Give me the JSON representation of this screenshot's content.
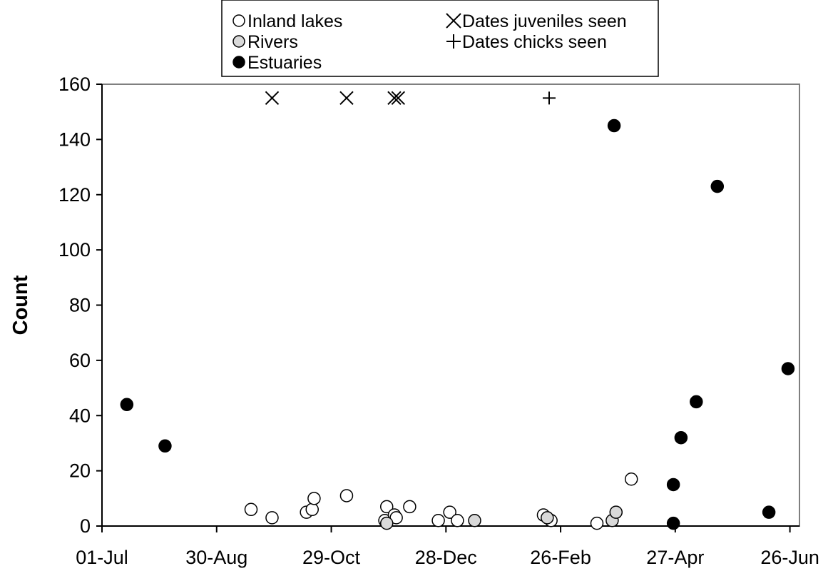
{
  "chart_data": {
    "type": "scatter",
    "ylabel": "Count",
    "ylim": [
      0,
      160
    ],
    "yticks": [
      0,
      20,
      40,
      60,
      80,
      100,
      120,
      140,
      160
    ],
    "xlim": [
      "01-Jul",
      "01-Jul"
    ],
    "xticks": [
      "01-Jul",
      "30-Aug",
      "29-Oct",
      "28-Dec",
      "26-Feb",
      "27-Apr",
      "26-Jun"
    ],
    "grid": false,
    "legend_position": "top",
    "legend": [
      {
        "label": "Inland lakes",
        "marker": "open-circle"
      },
      {
        "label": "Rivers",
        "marker": "gray-circle"
      },
      {
        "label": "Estuaries",
        "marker": "filled-circle"
      },
      {
        "label": "Dates juveniles seen",
        "marker": "x"
      },
      {
        "label": "Dates chicks seen",
        "marker": "plus"
      }
    ],
    "series": [
      {
        "name": "Inland lakes",
        "marker": "open-circle",
        "color": "#ffffff",
        "points": [
          {
            "x": "17-Sep",
            "y": 6
          },
          {
            "x": "28-Sep",
            "y": 3
          },
          {
            "x": "16-Oct",
            "y": 5
          },
          {
            "x": "19-Oct",
            "y": 6
          },
          {
            "x": "20-Oct",
            "y": 10
          },
          {
            "x": "06-Nov",
            "y": 11
          },
          {
            "x": "26-Nov",
            "y": 2
          },
          {
            "x": "27-Nov",
            "y": 7
          },
          {
            "x": "01-Dec",
            "y": 4
          },
          {
            "x": "02-Dec",
            "y": 3
          },
          {
            "x": "09-Dec",
            "y": 7
          },
          {
            "x": "24-Dec",
            "y": 2
          },
          {
            "x": "30-Dec",
            "y": 5
          },
          {
            "x": "03-Jan",
            "y": 2
          },
          {
            "x": "17-Feb",
            "y": 4
          },
          {
            "x": "21-Feb",
            "y": 2
          },
          {
            "x": "17-Mar",
            "y": 1
          },
          {
            "x": "04-Apr",
            "y": 17
          }
        ]
      },
      {
        "name": "Rivers",
        "marker": "gray-circle",
        "color": "#d9d9d9",
        "points": [
          {
            "x": "27-Nov",
            "y": 1
          },
          {
            "x": "12-Jan",
            "y": 2
          },
          {
            "x": "19-Feb",
            "y": 3
          },
          {
            "x": "25-Mar",
            "y": 2
          },
          {
            "x": "27-Mar",
            "y": 5
          }
        ]
      },
      {
        "name": "Estuaries",
        "marker": "filled-circle",
        "color": "#000000",
        "points": [
          {
            "x": "14-Jul",
            "y": 44
          },
          {
            "x": "03-Aug",
            "y": 29
          },
          {
            "x": "26-Mar",
            "y": 145
          },
          {
            "x": "26-Apr",
            "y": 15
          },
          {
            "x": "26-Apr",
            "y": 1
          },
          {
            "x": "30-Apr",
            "y": 32
          },
          {
            "x": "08-May",
            "y": 45
          },
          {
            "x": "19-May",
            "y": 123
          },
          {
            "x": "15-Jun",
            "y": 5
          },
          {
            "x": "25-Jun",
            "y": 57
          }
        ]
      },
      {
        "name": "Dates juveniles seen",
        "marker": "x",
        "color": "#000000",
        "points": [
          {
            "x": "28-Sep",
            "y": 155
          },
          {
            "x": "06-Nov",
            "y": 155
          },
          {
            "x": "01-Dec",
            "y": 155
          },
          {
            "x": "03-Dec",
            "y": 155
          }
        ]
      },
      {
        "name": "Dates chicks seen",
        "marker": "plus",
        "color": "#000000",
        "points": [
          {
            "x": "20-Feb",
            "y": 155
          }
        ]
      }
    ]
  }
}
